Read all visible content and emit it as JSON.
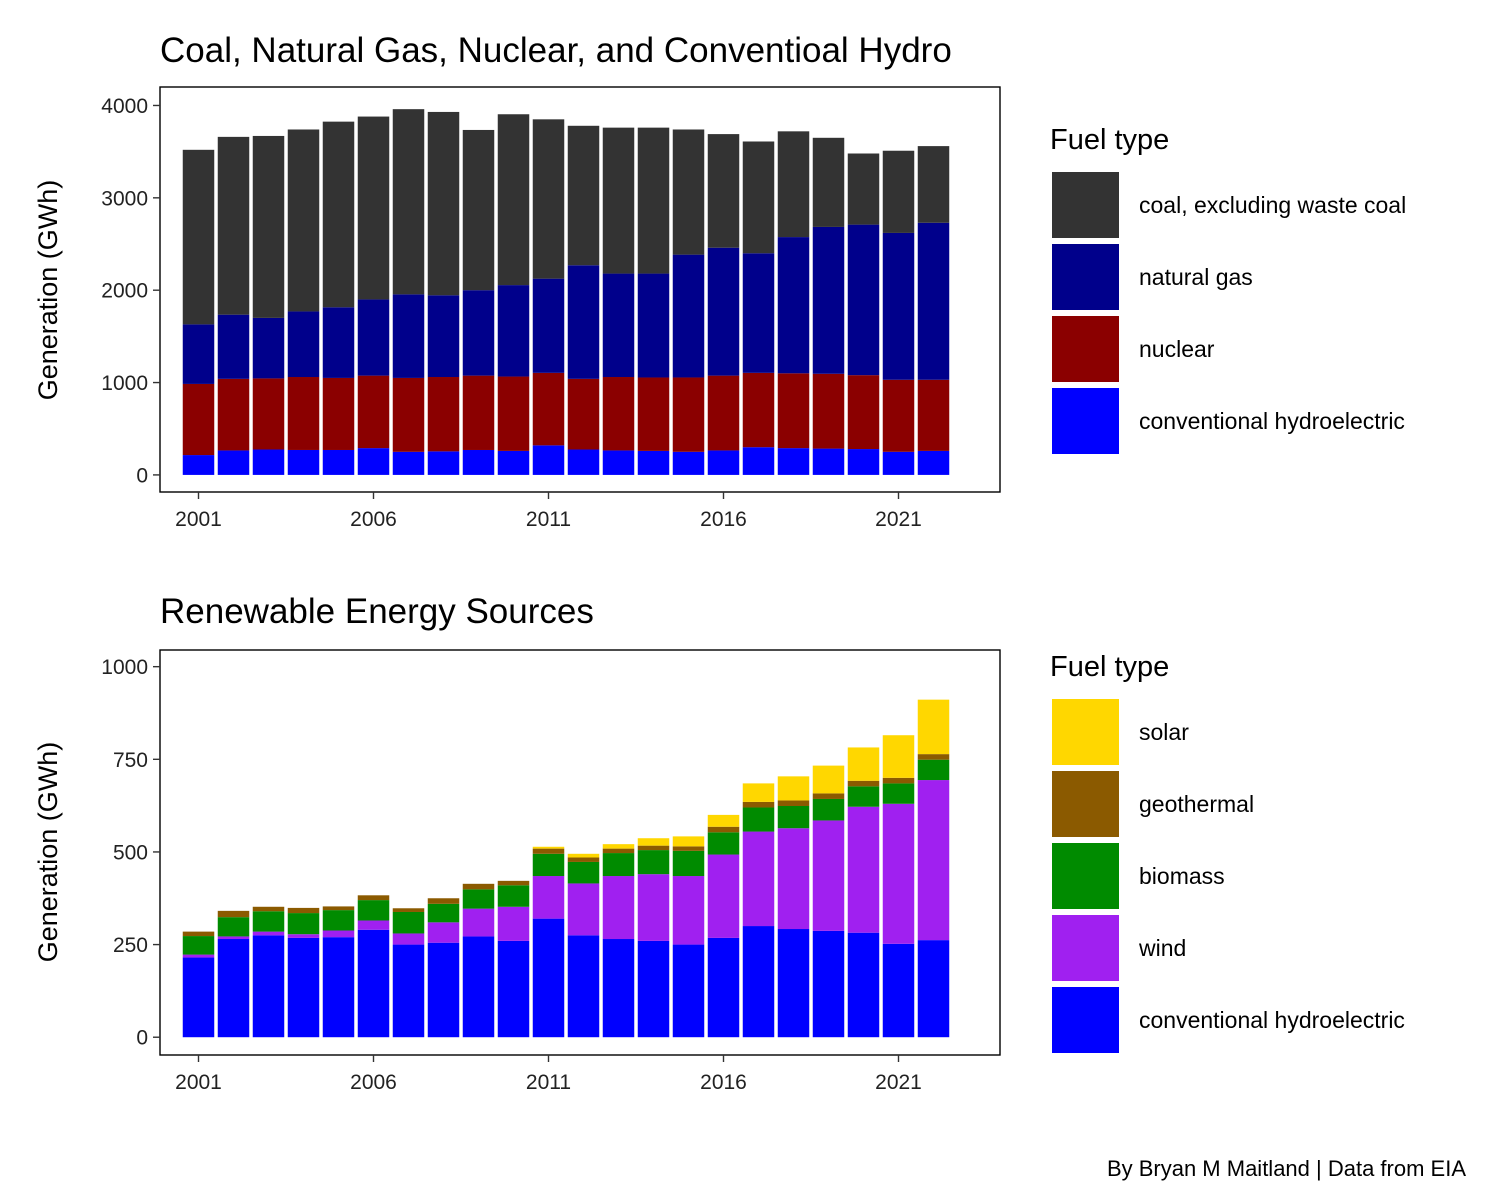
{
  "caption": "By Bryan M Maitland | Data from EIA",
  "chart_data": [
    {
      "type": "bar",
      "stacked": true,
      "title": "Coal, Natural Gas, Nuclear, and Conventioal Hydro",
      "xlabel": "",
      "ylabel": "Generation (GWh)",
      "x": [
        2001,
        2002,
        2003,
        2004,
        2005,
        2006,
        2007,
        2008,
        2009,
        2010,
        2011,
        2012,
        2013,
        2014,
        2015,
        2016,
        2017,
        2018,
        2019,
        2020,
        2021,
        2022
      ],
      "xlim": [
        1999.9,
        2023.9
      ],
      "xticks": [
        2001,
        2006,
        2011,
        2016,
        2021
      ],
      "ylim": [
        -185,
        4200
      ],
      "yticks": [
        0,
        1000,
        2000,
        3000,
        4000
      ],
      "grid": false,
      "legend": {
        "title": "Fuel type",
        "position": "right"
      },
      "series": [
        {
          "name": "conventional hydroelectric",
          "color": "#0000FF",
          "values": [
            215,
            265,
            275,
            270,
            270,
            290,
            250,
            255,
            270,
            260,
            320,
            275,
            265,
            260,
            250,
            265,
            300,
            290,
            285,
            280,
            250,
            260
          ]
        },
        {
          "name": "nuclear",
          "color": "#8B0000",
          "values": [
            770,
            775,
            770,
            790,
            780,
            785,
            800,
            805,
            805,
            805,
            785,
            765,
            795,
            795,
            805,
            810,
            805,
            810,
            810,
            800,
            780,
            770
          ]
        },
        {
          "name": "natural gas",
          "color": "#00008B",
          "values": [
            645,
            695,
            655,
            710,
            765,
            825,
            905,
            885,
            925,
            990,
            1020,
            1230,
            1120,
            1125,
            1330,
            1385,
            1295,
            1475,
            1590,
            1630,
            1590,
            1700
          ]
        },
        {
          "name": "coal, excluding waste coal",
          "color": "#333333",
          "values": [
            1890,
            1925,
            1970,
            1970,
            2010,
            1980,
            2005,
            1985,
            1735,
            1850,
            1725,
            1510,
            1580,
            1580,
            1355,
            1230,
            1210,
            1145,
            965,
            770,
            890,
            830
          ]
        }
      ]
    },
    {
      "type": "bar",
      "stacked": true,
      "title": "Renewable Energy Sources",
      "xlabel": "",
      "ylabel": "Generation (GWh)",
      "x": [
        2001,
        2002,
        2003,
        2004,
        2005,
        2006,
        2007,
        2008,
        2009,
        2010,
        2011,
        2012,
        2013,
        2014,
        2015,
        2016,
        2017,
        2018,
        2019,
        2020,
        2021,
        2022
      ],
      "xlim": [
        1999.9,
        2023.9
      ],
      "xticks": [
        2001,
        2006,
        2011,
        2016,
        2021
      ],
      "ylim": [
        -48,
        1045
      ],
      "yticks": [
        0,
        250,
        500,
        750,
        1000
      ],
      "grid": false,
      "legend": {
        "title": "Fuel type",
        "position": "right"
      },
      "series": [
        {
          "name": "conventional hydroelectric",
          "color": "#0000FF",
          "values": [
            215,
            265,
            275,
            268,
            270,
            290,
            250,
            255,
            272,
            260,
            320,
            275,
            265,
            260,
            250,
            268,
            300,
            292,
            287,
            282,
            252,
            262
          ]
        },
        {
          "name": "wind",
          "color": "#A020F0",
          "values": [
            8,
            7,
            10,
            10,
            18,
            25,
            30,
            55,
            75,
            92,
            115,
            140,
            170,
            180,
            185,
            225,
            255,
            272,
            298,
            340,
            378,
            432
          ]
        },
        {
          "name": "biomass",
          "color": "#008B00",
          "values": [
            50,
            52,
            55,
            57,
            55,
            55,
            58,
            50,
            52,
            58,
            60,
            58,
            62,
            65,
            68,
            60,
            65,
            60,
            58,
            55,
            55,
            55
          ]
        },
        {
          "name": "geothermal",
          "color": "#8B5A00",
          "values": [
            12,
            17,
            12,
            14,
            10,
            13,
            10,
            15,
            15,
            12,
            14,
            12,
            12,
            12,
            12,
            15,
            15,
            15,
            15,
            15,
            15,
            15
          ]
        },
        {
          "name": "solar",
          "color": "#FFD700",
          "values": [
            0,
            0,
            0,
            0,
            0,
            0,
            0,
            0,
            0,
            0,
            5,
            10,
            12,
            20,
            27,
            32,
            50,
            65,
            75,
            90,
            115,
            147
          ]
        }
      ]
    }
  ]
}
